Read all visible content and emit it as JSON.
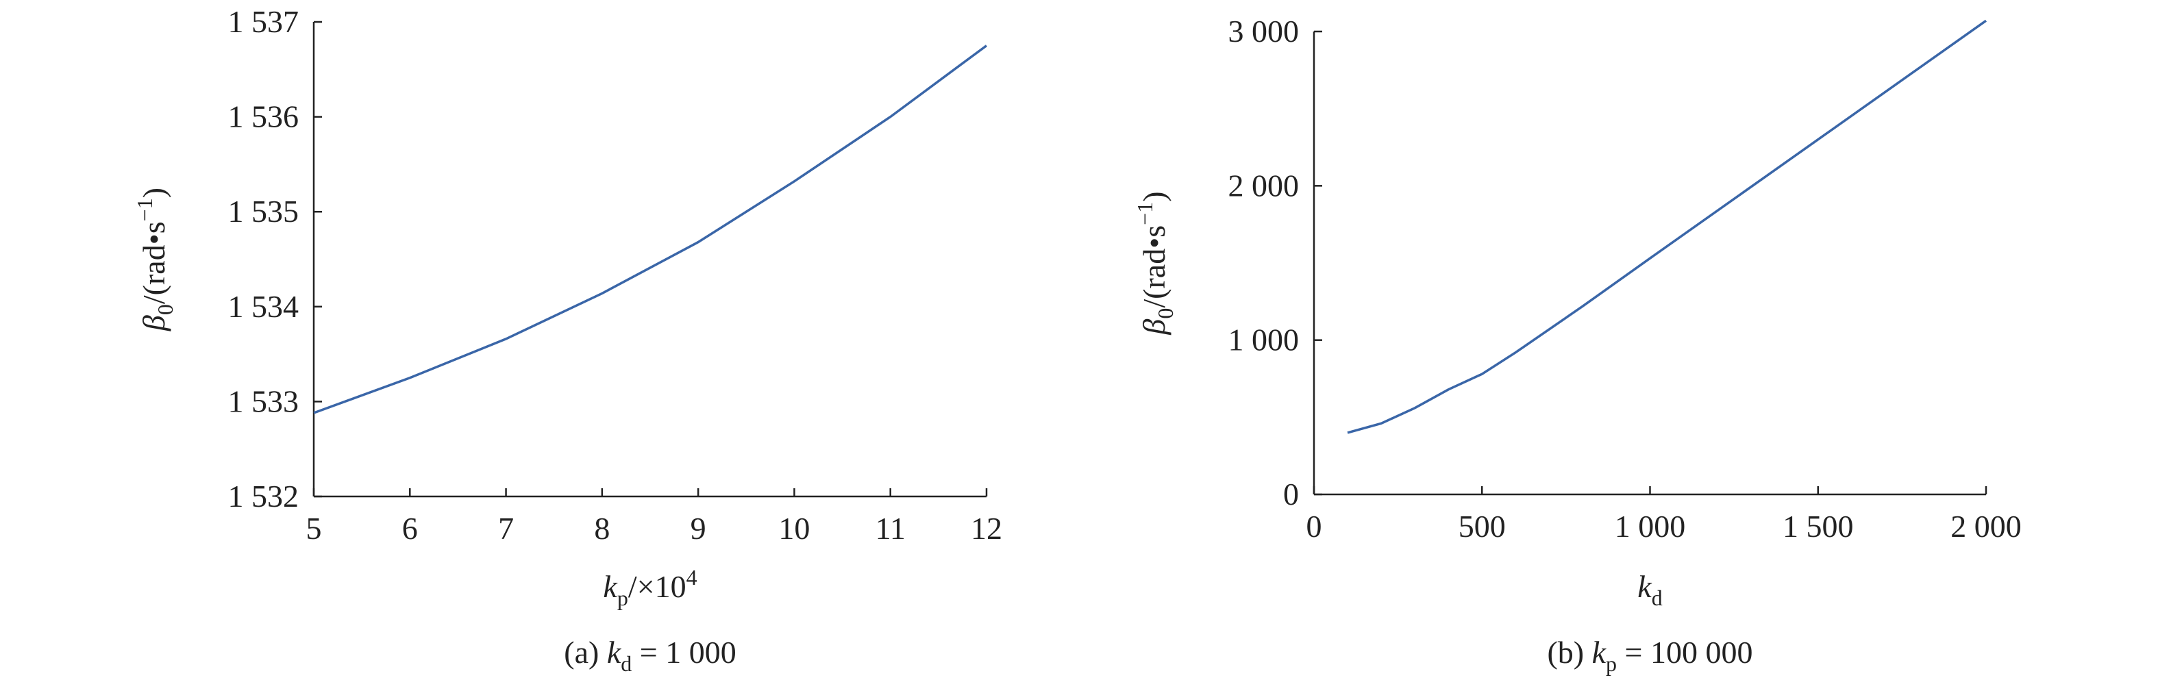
{
  "chart_data": [
    {
      "type": "line",
      "x": [
        5,
        6,
        7,
        8,
        9,
        10,
        11,
        12
      ],
      "values": [
        1532.88,
        1533.25,
        1533.66,
        1534.14,
        1534.68,
        1535.32,
        1536.0,
        1536.75
      ],
      "color": "#3a66a8",
      "xlim": [
        5,
        12
      ],
      "xticks": [
        5,
        6,
        7,
        8,
        9,
        10,
        11,
        12
      ],
      "ylim": [
        1532,
        1537
      ],
      "yticks": [
        {
          "value": 1532,
          "label": "1 532"
        },
        {
          "value": 1533,
          "label": "1 533"
        },
        {
          "value": 1534,
          "label": "1 534"
        },
        {
          "value": 1535,
          "label": "1 535"
        },
        {
          "value": 1536,
          "label": "1 536"
        },
        {
          "value": 1537,
          "label": "1 537"
        }
      ],
      "x_label": [
        {
          "text": "k",
          "style": "italic"
        },
        {
          "text": "p",
          "style": "sub"
        },
        {
          "text": "/×10",
          "style": "normal"
        },
        {
          "text": "4",
          "style": "sup"
        }
      ],
      "y_label": [
        {
          "text": "β",
          "style": "italic"
        },
        {
          "text": "0",
          "style": "sub"
        },
        {
          "text": "/(rad•s",
          "style": "normal"
        },
        {
          "text": "−1",
          "style": "sup"
        },
        {
          "text": ")",
          "style": "normal"
        }
      ],
      "caption": [
        {
          "text": "(a)  ",
          "style": "normal"
        },
        {
          "text": "k",
          "style": "italic"
        },
        {
          "text": "d",
          "style": "sub"
        },
        {
          "text": " = 1 000",
          "style": "normal"
        }
      ]
    },
    {
      "type": "line",
      "x": [
        100,
        200,
        300,
        400,
        500,
        600,
        800,
        1000,
        1500,
        2000
      ],
      "values": [
        400,
        460,
        560,
        680,
        780,
        920,
        1220,
        1530,
        2300,
        3070
      ],
      "color": "#3a66a8",
      "xlim": [
        0,
        2000
      ],
      "xticks": [
        0,
        500,
        {
          "value": 1000,
          "label": "1 000"
        },
        {
          "value": 1500,
          "label": "1 500"
        },
        {
          "value": 2000,
          "label": "2 000"
        }
      ],
      "ylim": [
        0,
        3000
      ],
      "yticks": [
        0,
        {
          "value": 1000,
          "label": "1 000"
        },
        {
          "value": 2000,
          "label": "2 000"
        },
        {
          "value": 3000,
          "label": "3 000"
        }
      ],
      "x_label": [
        {
          "text": "k",
          "style": "italic"
        },
        {
          "text": "d",
          "style": "sub"
        }
      ],
      "y_label": [
        {
          "text": "β",
          "style": "italic"
        },
        {
          "text": "0",
          "style": "sub"
        },
        {
          "text": "/(rad•s",
          "style": "normal"
        },
        {
          "text": "−1",
          "style": "sup"
        },
        {
          "text": ")",
          "style": "normal"
        }
      ],
      "caption": [
        {
          "text": "(b)  ",
          "style": "normal"
        },
        {
          "text": "k",
          "style": "italic"
        },
        {
          "text": "p",
          "style": "sub"
        },
        {
          "text": " = 100 000",
          "style": "normal"
        }
      ]
    }
  ]
}
